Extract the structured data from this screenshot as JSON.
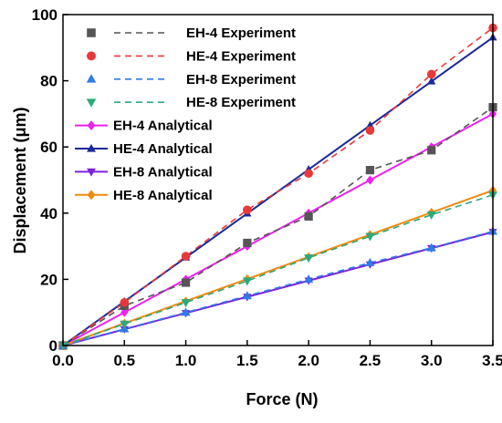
{
  "chart_data": {
    "type": "line",
    "title": "",
    "xlabel": "Force (N)",
    "ylabel": "Displacement (μm)",
    "xlim": [
      0,
      3.5
    ],
    "ylim": [
      0,
      100
    ],
    "xticks": [
      0.0,
      0.5,
      1.0,
      1.5,
      2.0,
      2.5,
      3.0,
      3.5
    ],
    "xtick_labels": [
      "0.0",
      "0.5",
      "1.0",
      "1.5",
      "2.0",
      "2.5",
      "3.0",
      "3.5"
    ],
    "yticks": [
      0,
      20,
      40,
      60,
      80,
      100
    ],
    "ytick_labels": [
      "0",
      "20",
      "40",
      "60",
      "80",
      "100"
    ],
    "grid": false,
    "legend_position": "top-left",
    "series": [
      {
        "name": "EH-4 Experiment",
        "kind": "experiment",
        "marker": "square",
        "color": "#555555",
        "x": [
          0,
          0.5,
          1.0,
          1.5,
          2.0,
          2.5,
          3.0,
          3.5
        ],
        "y": [
          0,
          12,
          19,
          31,
          39,
          53,
          59,
          72
        ]
      },
      {
        "name": "HE-4 Experiment",
        "kind": "experiment",
        "marker": "circle",
        "color": "#e8393a",
        "x": [
          0,
          0.5,
          1.0,
          1.5,
          2.0,
          2.5,
          3.0,
          3.5
        ],
        "y": [
          0,
          13,
          27,
          41,
          52,
          65,
          82,
          96
        ]
      },
      {
        "name": "EH-8 Experiment",
        "kind": "experiment",
        "marker": "triangle-up",
        "color": "#2f7be8",
        "x": [
          0,
          0.5,
          1.0,
          1.5,
          2.0,
          2.5,
          3.0,
          3.5
        ],
        "y": [
          0,
          5,
          10,
          15,
          20,
          25,
          29.5,
          34.5
        ]
      },
      {
        "name": "HE-8 Experiment",
        "kind": "experiment",
        "marker": "triangle-down",
        "color": "#2ea87a",
        "x": [
          0,
          0.5,
          1.0,
          1.5,
          2.0,
          2.5,
          3.0,
          3.5
        ],
        "y": [
          0,
          6.5,
          13,
          19.5,
          26.5,
          33,
          39.5,
          45.5
        ]
      },
      {
        "name": "EH-4 Analytical",
        "kind": "analytical",
        "marker": "diamond",
        "color": "#ee22ee",
        "x": [
          0,
          0.5,
          1.0,
          1.5,
          2.0,
          2.5,
          3.0,
          3.5
        ],
        "y": [
          0,
          10,
          20,
          30,
          40,
          50,
          60,
          70
        ]
      },
      {
        "name": "HE-4 Analytical",
        "kind": "analytical",
        "marker": "triangle-up",
        "color": "#1a2a9a",
        "x": [
          0,
          0.5,
          1.0,
          1.5,
          2.0,
          2.5,
          3.0,
          3.5
        ],
        "y": [
          0,
          13.3,
          26.6,
          39.9,
          53.2,
          66.5,
          79.8,
          93.1
        ]
      },
      {
        "name": "EH-8 Analytical",
        "kind": "analytical",
        "marker": "triangle-down",
        "color": "#7a22dd",
        "x": [
          0,
          0.5,
          1.0,
          1.5,
          2.0,
          2.5,
          3.0,
          3.5
        ],
        "y": [
          0,
          4.9,
          9.8,
          14.7,
          19.6,
          24.5,
          29.4,
          34.3
        ]
      },
      {
        "name": "HE-8 Analytical",
        "kind": "analytical",
        "marker": "diamond",
        "color": "#f08a10",
        "x": [
          0,
          0.5,
          1.0,
          1.5,
          2.0,
          2.5,
          3.0,
          3.5
        ],
        "y": [
          0,
          6.7,
          13.4,
          20.1,
          26.8,
          33.5,
          40.2,
          46.9
        ]
      }
    ]
  }
}
